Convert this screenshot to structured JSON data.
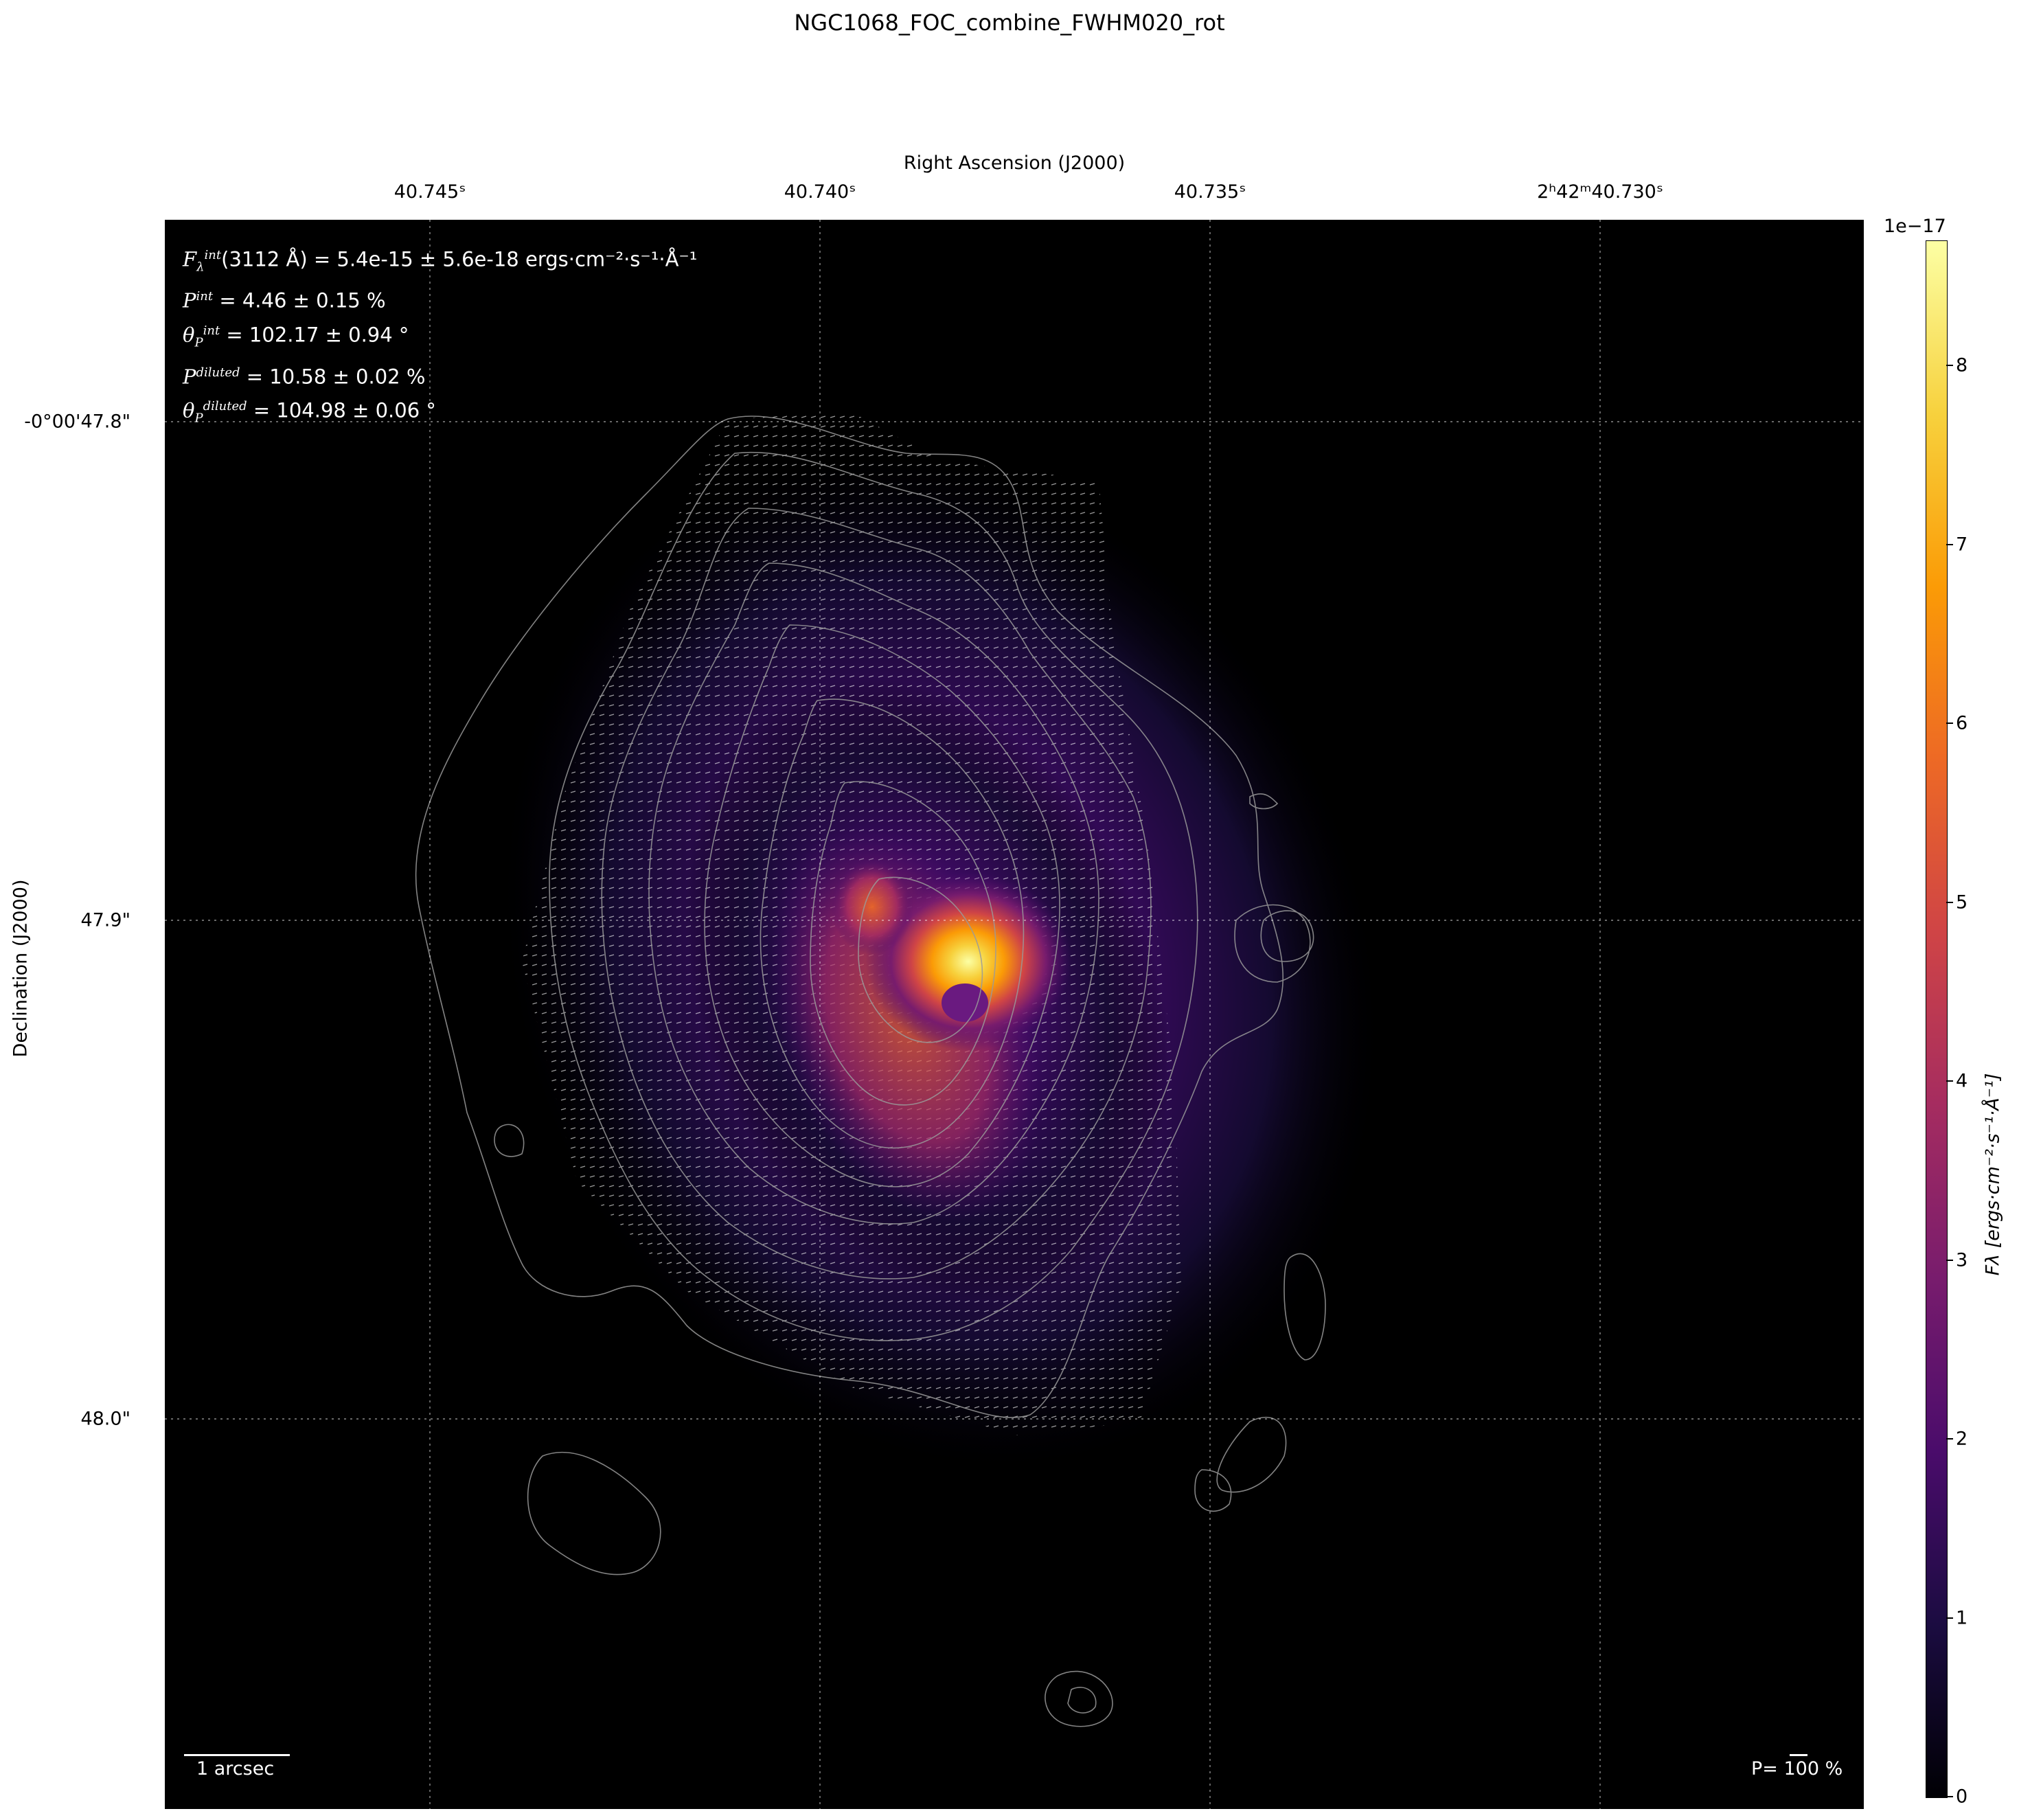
{
  "title": "NGC1068_FOC_combine_FWHM020_rot",
  "x_axis_label": "Right Ascension (J2000)",
  "y_axis_label": "Declination (J2000)",
  "x_ticks": [
    "40.745ˢ",
    "40.740ˢ",
    "40.735ˢ",
    "2ʰ42ᵐ40.730ˢ"
  ],
  "y_ticks": [
    "-0°00'47.8\"",
    "47.9\"",
    "48.0\""
  ],
  "stats": {
    "flux": "(3112 Å) = 5.4e-15 ± 5.6e-18 ergs·cm⁻²·s⁻¹·Å⁻¹",
    "p_int": "= 4.46 ± 0.15 %",
    "theta_int": "= 102.17 ± 0.94 °",
    "p_diluted": "= 10.58 ± 0.02 %",
    "theta_diluted": "= 104.98 ± 0.06 °"
  },
  "scalebar_label": "1 arcsec",
  "pscale_label": "P= 100 %",
  "colorbar": {
    "exponent": "1e−17",
    "label": "Fλ [ergs·cm⁻²·s⁻¹·Å⁻¹]",
    "ticks": [
      "0",
      "1",
      "2",
      "3",
      "4",
      "5",
      "6",
      "7",
      "8"
    ],
    "colormap": "inferno",
    "colors": [
      "#000004",
      "#1b0c41",
      "#4a0c6b",
      "#781c6d",
      "#a52c60",
      "#cf4446",
      "#ed6925",
      "#fb9b06",
      "#f7d13d",
      "#fcffa4"
    ]
  },
  "chart_data": {
    "type": "heatmap",
    "title": "NGC1068_FOC_combine_FWHM020_rot",
    "xlabel": "Right Ascension (J2000)",
    "ylabel": "Declination (J2000)",
    "colorbar_range": [
      0,
      8.7e-17
    ],
    "colorbar_scale": "1e-17",
    "grid": true,
    "overlays": [
      "flux contours (grey)",
      "polarization vectors (white)"
    ],
    "peak_flux": 8.7e-17
  }
}
